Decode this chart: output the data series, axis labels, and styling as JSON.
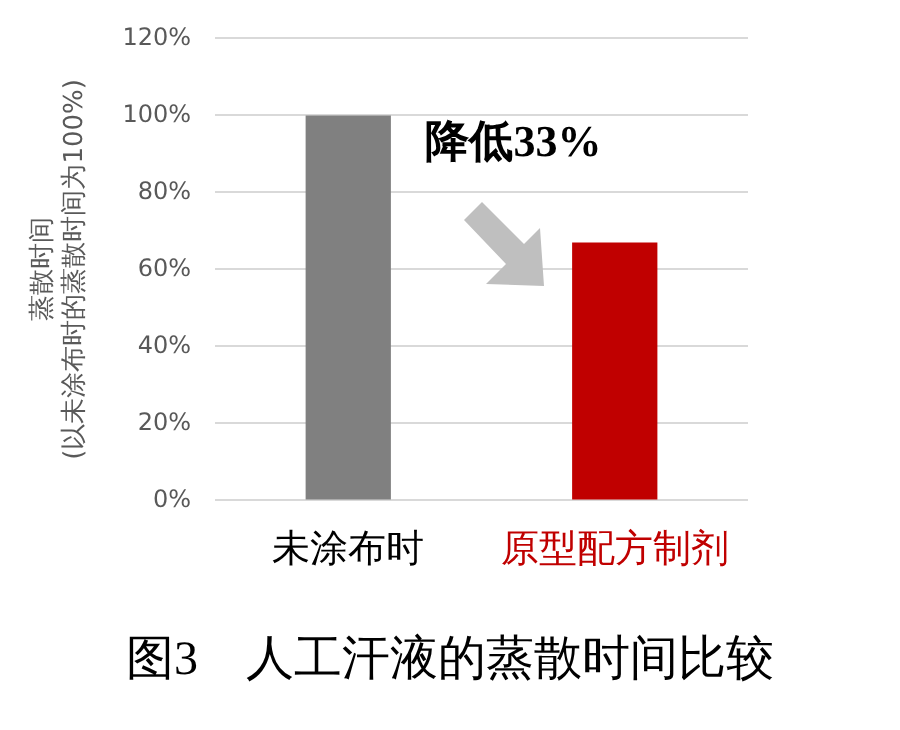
{
  "chart_data": {
    "type": "bar",
    "title": "图3　人工汗液的蒸散时间比较",
    "ylabel": "蒸散时间\n(以未涂布时的蒸散时间为100%)",
    "categories": [
      "未涂布时",
      "原型配方制剂"
    ],
    "values": [
      100,
      67
    ],
    "colors": [
      "#808080",
      "#c00000"
    ],
    "ylim": [
      0,
      120
    ],
    "yticks": [
      {
        "value": 0,
        "label": "0%"
      },
      {
        "value": 20,
        "label": "20%"
      },
      {
        "value": 40,
        "label": "40%"
      },
      {
        "value": 60,
        "label": "60%"
      },
      {
        "value": 80,
        "label": "80%"
      },
      {
        "value": 100,
        "label": "100%"
      },
      {
        "value": 120,
        "label": "120%"
      }
    ],
    "grid": "y",
    "legend": false,
    "annotations": [
      "降低33%"
    ]
  }
}
